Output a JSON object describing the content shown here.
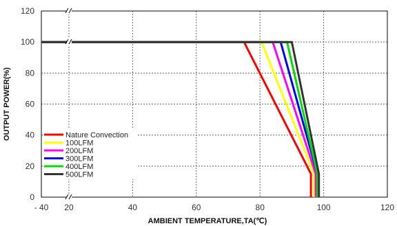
{
  "chart_data": {
    "type": "line",
    "xlabel": "AMBIENT TEMPERATURE,TA(℃)",
    "ylabel": "OUTPUT POWER(%)",
    "xlim": [
      -40,
      120
    ],
    "ylim": [
      0,
      120
    ],
    "x_ticks": [
      -40,
      20,
      40,
      60,
      80,
      100,
      120
    ],
    "x_tick_labels": [
      "- 40",
      "20",
      "40",
      "60",
      "80",
      "100",
      "120"
    ],
    "y_ticks": [
      0,
      20,
      40,
      60,
      80,
      100,
      120
    ],
    "y_tick_labels": [
      "0",
      "20",
      "40",
      "60",
      "80",
      "100",
      "120"
    ],
    "x_axis_break_between": [
      -40,
      20
    ],
    "grid": true,
    "legend_position": "bottom-left",
    "series": [
      {
        "name": "Nature Convection",
        "color": "#ff0000",
        "points": [
          [
            -40,
            100
          ],
          [
            75,
            100
          ],
          [
            96,
            15
          ],
          [
            96,
            0
          ]
        ]
      },
      {
        "name": "100LFM",
        "color": "#ffff00",
        "points": [
          [
            -40,
            100
          ],
          [
            80.5,
            100
          ],
          [
            97,
            15
          ],
          [
            97,
            0
          ]
        ]
      },
      {
        "name": "200LFM",
        "color": "#ff00ff",
        "points": [
          [
            -40,
            100
          ],
          [
            84,
            100
          ],
          [
            97.5,
            15
          ],
          [
            97.5,
            0
          ]
        ]
      },
      {
        "name": "300LFM",
        "color": "#0000ff",
        "points": [
          [
            -40,
            100
          ],
          [
            86.5,
            100
          ],
          [
            98,
            15
          ],
          [
            98,
            0
          ]
        ]
      },
      {
        "name": "400LFM",
        "color": "#00dd00",
        "points": [
          [
            -40,
            100
          ],
          [
            88.5,
            100
          ],
          [
            98,
            15
          ],
          [
            98,
            0
          ]
        ]
      },
      {
        "name": "500LFM",
        "color": "#333333",
        "points": [
          [
            -40,
            100
          ],
          [
            90,
            100
          ],
          [
            98.5,
            15
          ],
          [
            98.5,
            0
          ]
        ]
      }
    ]
  }
}
